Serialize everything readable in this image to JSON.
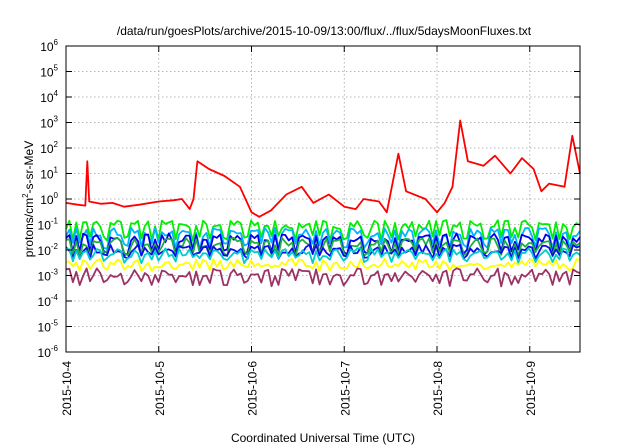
{
  "chart_data": {
    "type": "line",
    "title": "/data/run/goesPlots/archive/2015-10-09/13:00/flux/../flux/5daysMoonFluxes.txt",
    "xlabel": "Coordinated Universal Time (UTC)",
    "ylabel": {
      "prefix": "protons/cm",
      "sup": "2",
      "suffix": "-s-sr-MeV"
    },
    "y_scale": "log",
    "ylim_exponents": [
      -6,
      6
    ],
    "ytick_labels": [
      {
        "base": "10",
        "exp": "6"
      },
      {
        "base": "10",
        "exp": "5"
      },
      {
        "base": "10",
        "exp": "4"
      },
      {
        "base": "10",
        "exp": "3"
      },
      {
        "base": "10",
        "exp": "2"
      },
      {
        "base": "10",
        "exp": "1"
      },
      {
        "base": "10",
        "exp": "0"
      },
      {
        "base": "10",
        "exp": "-1"
      },
      {
        "base": "10",
        "exp": "-2"
      },
      {
        "base": "10",
        "exp": "-3"
      },
      {
        "base": "10",
        "exp": "-4"
      },
      {
        "base": "10",
        "exp": "-5"
      },
      {
        "base": "10",
        "exp": "-6"
      }
    ],
    "x_range_dates": [
      "2015-10-04",
      "2015-10-09 13:00"
    ],
    "xtick_labels": [
      "2015-10-4",
      "2015-10-5",
      "2015-10-6",
      "2015-10-7",
      "2015-10-8",
      "2015-10-9"
    ],
    "grid": true,
    "series": [
      {
        "color": "#ff0000",
        "points": [
          [
            "2015-10-04 00:00",
            0.7
          ],
          [
            "2015-10-04 03:00",
            0.6
          ],
          [
            "2015-10-04 05:00",
            0.55
          ],
          [
            "2015-10-04 05:30",
            30
          ],
          [
            "2015-10-04 06:00",
            0.8
          ],
          [
            "2015-10-04 09:00",
            0.65
          ],
          [
            "2015-10-04 12:00",
            0.7
          ],
          [
            "2015-10-04 15:00",
            0.5
          ],
          [
            "2015-10-04 19:00",
            0.6
          ],
          [
            "2015-10-05 00:00",
            0.8
          ],
          [
            "2015-10-05 04:00",
            0.9
          ],
          [
            "2015-10-05 06:00",
            1.0
          ],
          [
            "2015-10-05 08:00",
            0.4
          ],
          [
            "2015-10-05 09:00",
            1.0
          ],
          [
            "2015-10-05 10:00",
            30
          ],
          [
            "2015-10-05 13:00",
            15
          ],
          [
            "2015-10-05 17:00",
            8
          ],
          [
            "2015-10-05 21:00",
            3
          ],
          [
            "2015-10-06 00:00",
            0.3
          ],
          [
            "2015-10-06 02:00",
            0.2
          ],
          [
            "2015-10-06 05:00",
            0.35
          ],
          [
            "2015-10-06 09:00",
            1.5
          ],
          [
            "2015-10-06 13:00",
            3
          ],
          [
            "2015-10-06 16:00",
            0.7
          ],
          [
            "2015-10-06 20:00",
            1.5
          ],
          [
            "2015-10-07 00:00",
            0.5
          ],
          [
            "2015-10-07 03:00",
            0.4
          ],
          [
            "2015-10-07 05:00",
            1.0
          ],
          [
            "2015-10-07 09:00",
            0.8
          ],
          [
            "2015-10-07 11:00",
            0.3
          ],
          [
            "2015-10-07 14:00",
            60
          ],
          [
            "2015-10-07 16:00",
            2
          ],
          [
            "2015-10-07 21:00",
            1.0
          ],
          [
            "2015-10-08 00:00",
            0.3
          ],
          [
            "2015-10-08 02:00",
            0.7
          ],
          [
            "2015-10-08 04:00",
            3
          ],
          [
            "2015-10-08 06:00",
            1200
          ],
          [
            "2015-10-08 08:00",
            30
          ],
          [
            "2015-10-08 12:00",
            20
          ],
          [
            "2015-10-08 15:00",
            50
          ],
          [
            "2015-10-08 19:00",
            10
          ],
          [
            "2015-10-08 22:00",
            40
          ],
          [
            "2015-10-09 01:00",
            15
          ],
          [
            "2015-10-09 03:00",
            2
          ],
          [
            "2015-10-09 05:00",
            4
          ],
          [
            "2015-10-09 09:00",
            3
          ],
          [
            "2015-10-09 11:00",
            300
          ],
          [
            "2015-10-09 13:00",
            10
          ]
        ]
      },
      {
        "color": "#00ee00",
        "level": 0.1,
        "dip": 0.03
      },
      {
        "color": "#00b4ff",
        "level": 0.05,
        "dip": 0.015
      },
      {
        "color": "#0000ee",
        "level": 0.03,
        "dip": 0.008
      },
      {
        "color": "#20b040",
        "level": 0.02,
        "dip": 0.007
      },
      {
        "color": "#0a0af0",
        "level": 0.011,
        "dip": 0.006
      },
      {
        "color": "#00cccc",
        "level": 0.008,
        "dip": 0.004
      },
      {
        "color": "#ffff00",
        "level": 0.003,
        "dip": 0.002
      },
      {
        "color": "#993366",
        "level": 0.0013,
        "dip": 0.0005
      }
    ]
  }
}
